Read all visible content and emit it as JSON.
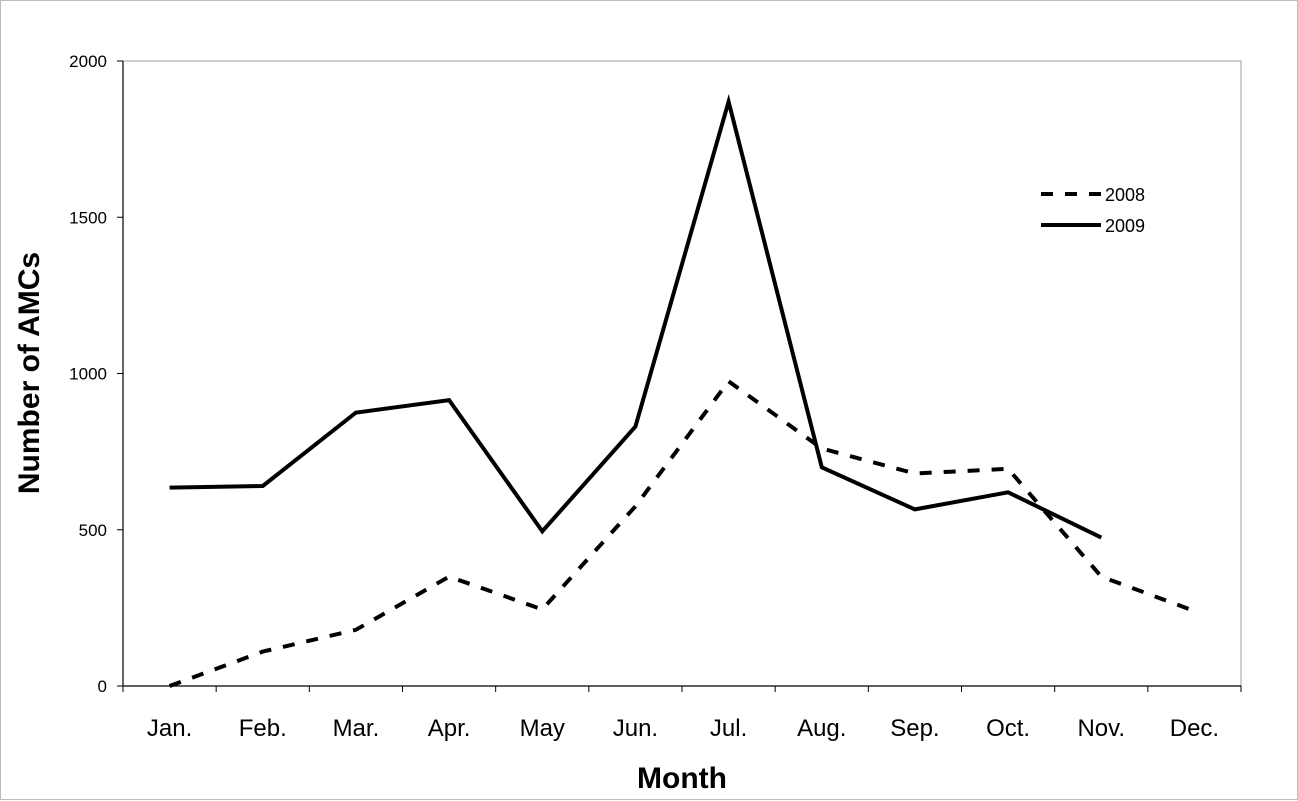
{
  "chart_data": {
    "type": "line",
    "title": "",
    "xlabel": "Month",
    "ylabel": "Number of AMCs",
    "categories": [
      "Jan.",
      "Feb.",
      "Mar.",
      "Apr.",
      "May",
      "Jun.",
      "Jul.",
      "Aug.",
      "Sep.",
      "Oct.",
      "Nov.",
      "Dec."
    ],
    "ylim": [
      0,
      2000
    ],
    "yticks": [
      0,
      500,
      1000,
      1500,
      2000
    ],
    "grid": false,
    "legend_position": "top-right",
    "series": [
      {
        "name": "2008",
        "style": "dashed",
        "color": "#000000",
        "values": [
          0,
          110,
          180,
          350,
          245,
          575,
          975,
          760,
          680,
          695,
          350,
          240
        ]
      },
      {
        "name": "2009",
        "style": "solid",
        "color": "#000000",
        "values": [
          635,
          640,
          875,
          915,
          495,
          830,
          1870,
          700,
          565,
          620,
          475,
          null
        ]
      }
    ]
  }
}
